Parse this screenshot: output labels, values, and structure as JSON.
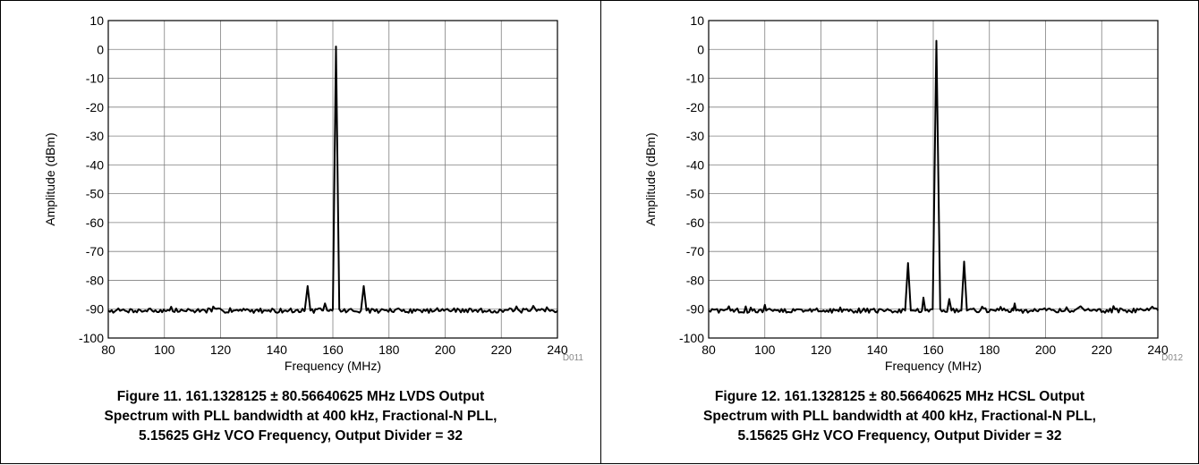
{
  "figures": [
    {
      "caption_lines": [
        "Figure 11. 161.1328125 ± 80.56640625 MHz LVDS Output",
        "Spectrum with PLL bandwidth at 400 kHz, Fractional-N PLL,",
        "5.15625 GHz VCO Frequency, Output Divider = 32"
      ],
      "code": "D011"
    },
    {
      "caption_lines": [
        "Figure 12. 161.1328125 ± 80.56640625 MHz HCSL Output",
        "Spectrum with PLL bandwidth at 400 kHz, Fractional-N PLL,",
        "5.15625 GHz VCO Frequency, Output Divider = 32"
      ],
      "code": "D012"
    }
  ],
  "chart_data": [
    {
      "type": "line",
      "title": "",
      "xlabel": "Frequency (MHz)",
      "ylabel": "Amplitude (dBm)",
      "xlim": [
        80,
        240
      ],
      "ylim": [
        -100,
        10
      ],
      "xticks": [
        80,
        100,
        120,
        140,
        160,
        180,
        200,
        220,
        240
      ],
      "yticks": [
        10,
        0,
        -10,
        -20,
        -30,
        -40,
        -50,
        -60,
        -70,
        -80,
        -90,
        -100
      ],
      "grid": true,
      "noise_floor": -90.5,
      "series": [
        {
          "color": "#000000",
          "points": [
            [
              80,
              -90.5
            ],
            [
              100,
              -90.5
            ],
            [
              150,
              -90.5
            ],
            [
              151,
              -82
            ],
            [
              152,
              -90.5
            ],
            [
              156.5,
              -90.5
            ],
            [
              157.2,
              -88
            ],
            [
              158,
              -90.5
            ],
            [
              160,
              -90
            ],
            [
              161.13,
              1
            ],
            [
              162.3,
              -90
            ],
            [
              170,
              -90.5
            ],
            [
              171,
              -82
            ],
            [
              172,
              -90.5
            ],
            [
              240,
              -90.5
            ]
          ]
        }
      ]
    },
    {
      "type": "line",
      "title": "",
      "xlabel": "Frequency (MHz)",
      "ylabel": "Amplitude (dBm)",
      "xlim": [
        80,
        240
      ],
      "ylim": [
        -100,
        10
      ],
      "xticks": [
        80,
        100,
        120,
        140,
        160,
        180,
        200,
        220,
        240
      ],
      "yticks": [
        10,
        0,
        -10,
        -20,
        -30,
        -40,
        -50,
        -60,
        -70,
        -80,
        -90,
        -100
      ],
      "grid": true,
      "noise_floor": -90.5,
      "series": [
        {
          "color": "#000000",
          "points": [
            [
              80,
              -90.5
            ],
            [
              99.5,
              -90.5
            ],
            [
              100,
              -88.5
            ],
            [
              100.5,
              -90.5
            ],
            [
              150,
              -90.5
            ],
            [
              151,
              -74
            ],
            [
              152,
              -90.5
            ],
            [
              156,
              -90.5
            ],
            [
              156.5,
              -86
            ],
            [
              157.2,
              -90.5
            ],
            [
              159.8,
              -90
            ],
            [
              161.13,
              3
            ],
            [
              162.5,
              -90
            ],
            [
              165,
              -90.5
            ],
            [
              165.7,
              -86.5
            ],
            [
              166.5,
              -90.5
            ],
            [
              170,
              -90.5
            ],
            [
              171,
              -73.5
            ],
            [
              172,
              -90.5
            ],
            [
              188.5,
              -90.5
            ],
            [
              189,
              -88
            ],
            [
              189.5,
              -90.5
            ],
            [
              211,
              -90
            ],
            [
              212.5,
              -89
            ],
            [
              214,
              -90.5
            ],
            [
              240,
              -90.5
            ]
          ]
        }
      ]
    }
  ]
}
